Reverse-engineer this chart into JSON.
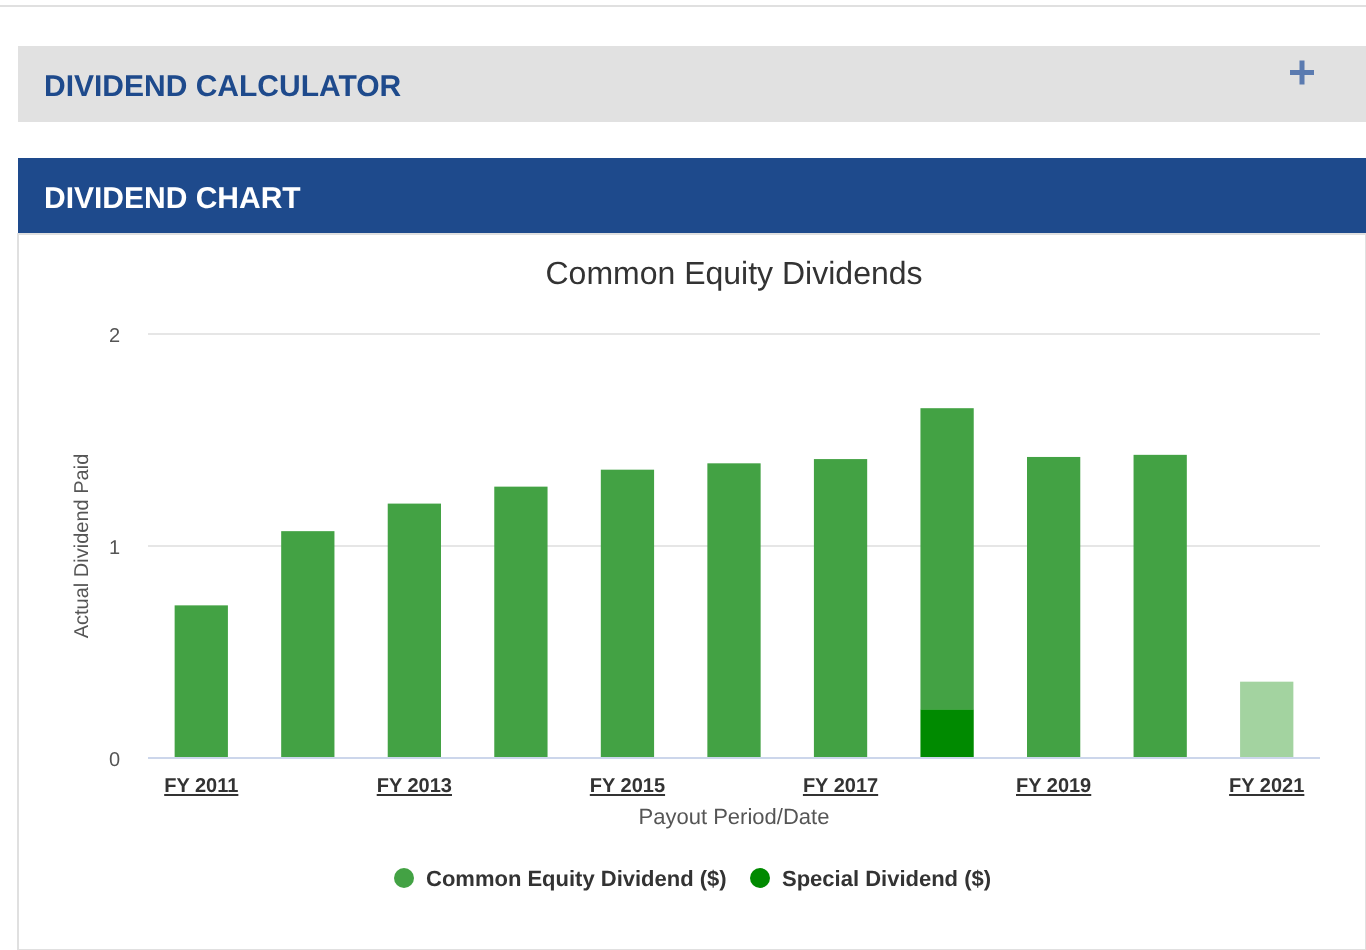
{
  "chart_data": {
    "type": "bar",
    "title": "Common Equity Dividends",
    "xlabel": "Payout Period/Date",
    "ylabel": "Actual Dividend Paid",
    "annotations": [
      "DIVIDEND CALCULATOR",
      "DIVIDEND CHART"
    ],
    "categories": [
      "FY 2011",
      null,
      "FY 2013",
      null,
      "FY 2015",
      null,
      "FY 2017",
      null,
      "FY 2019",
      null,
      "FY 2021"
    ],
    "stacked": true,
    "series": [
      {
        "name": "Special Dividend ($)",
        "color": "#008a00",
        "values": [
          null,
          null,
          null,
          null,
          null,
          null,
          null,
          0.23,
          null,
          null,
          null
        ]
      },
      {
        "name": "Common Equity Dividend ($)",
        "color": "#43a244",
        "colors": [
          "#43a244",
          "#43a244",
          "#43a244",
          "#43a244",
          "#43a244",
          "#43a244",
          "#43a244",
          "#43a244",
          "#43a244",
          "#43a244",
          "#a3d3a0"
        ],
        "values": [
          0.72,
          1.07,
          1.2,
          1.28,
          1.36,
          1.39,
          1.41,
          1.42,
          1.42,
          1.43,
          0.36
        ]
      }
    ],
    "ylim": [
      0,
      2
    ],
    "yticks": [
      0,
      1,
      2
    ],
    "grid": "y",
    "legend": "bottom"
  }
}
